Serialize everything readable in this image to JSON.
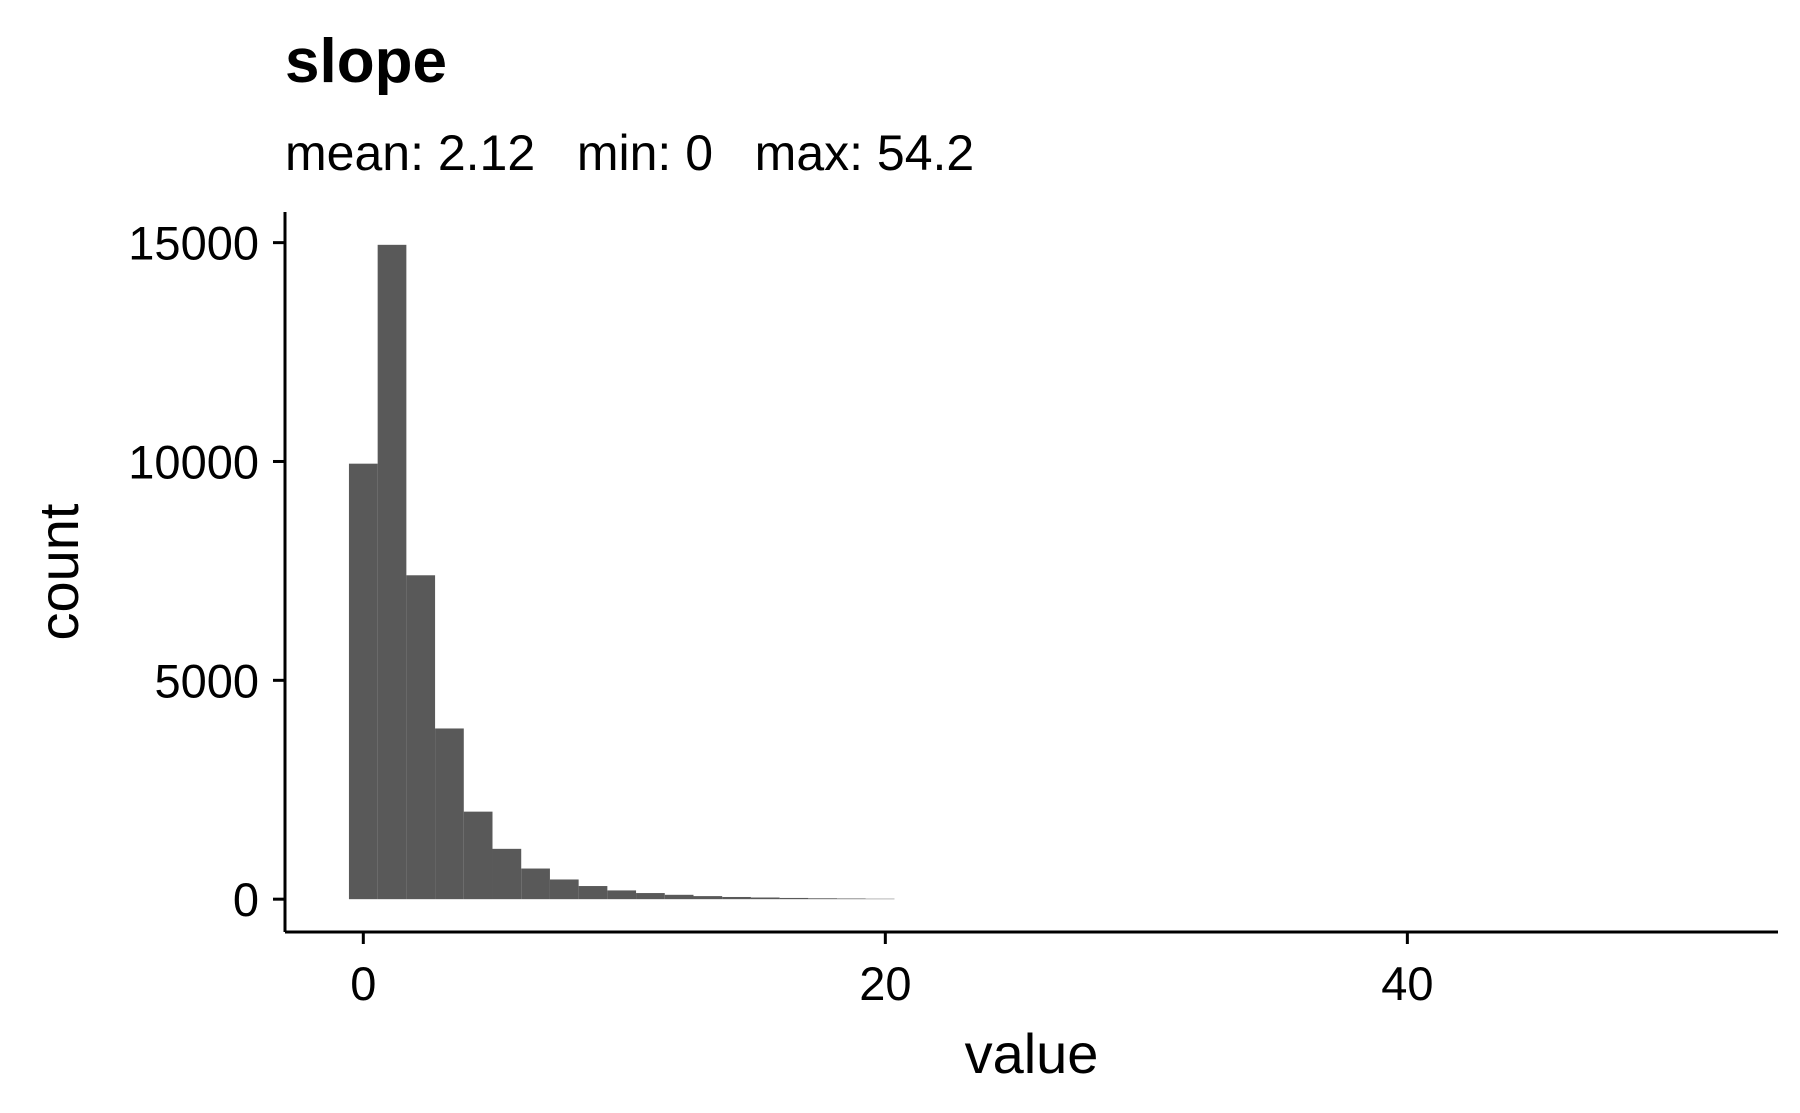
{
  "chart_data": {
    "type": "bar",
    "title": "slope",
    "subtitle": "mean: 2.12   min: 0   max: 54.2",
    "xlabel": "value",
    "ylabel": "count",
    "xlim": [
      -3,
      54.2
    ],
    "ylim": [
      -750,
      15700
    ],
    "x_ticks": [
      0,
      20,
      40
    ],
    "y_ticks": [
      0,
      5000,
      10000,
      15000
    ],
    "x_tick_labels": [
      "0",
      "20",
      "40"
    ],
    "y_tick_labels": [
      "0",
      "5000",
      "10000",
      "15000"
    ],
    "bin_width": 1.1,
    "bins": [
      {
        "start": -0.55,
        "end": 0.55,
        "count": 9950
      },
      {
        "start": 0.55,
        "end": 1.65,
        "count": 14950
      },
      {
        "start": 1.65,
        "end": 2.75,
        "count": 7400
      },
      {
        "start": 2.75,
        "end": 3.85,
        "count": 3900
      },
      {
        "start": 3.85,
        "end": 4.95,
        "count": 2000
      },
      {
        "start": 4.95,
        "end": 6.05,
        "count": 1150
      },
      {
        "start": 6.05,
        "end": 7.15,
        "count": 700
      },
      {
        "start": 7.15,
        "end": 8.25,
        "count": 450
      },
      {
        "start": 8.25,
        "end": 9.35,
        "count": 300
      },
      {
        "start": 9.35,
        "end": 10.45,
        "count": 200
      },
      {
        "start": 10.45,
        "end": 11.55,
        "count": 140
      },
      {
        "start": 11.55,
        "end": 12.65,
        "count": 100
      },
      {
        "start": 12.65,
        "end": 13.75,
        "count": 70
      },
      {
        "start": 13.75,
        "end": 14.85,
        "count": 50
      },
      {
        "start": 14.85,
        "end": 15.95,
        "count": 38
      },
      {
        "start": 15.95,
        "end": 17.05,
        "count": 28
      },
      {
        "start": 17.05,
        "end": 18.15,
        "count": 20
      },
      {
        "start": 18.15,
        "end": 19.25,
        "count": 15
      },
      {
        "start": 19.25,
        "end": 20.35,
        "count": 10
      }
    ],
    "grid": false,
    "legend": "none",
    "bar_color": "#595959",
    "axis_color": "#000000"
  }
}
